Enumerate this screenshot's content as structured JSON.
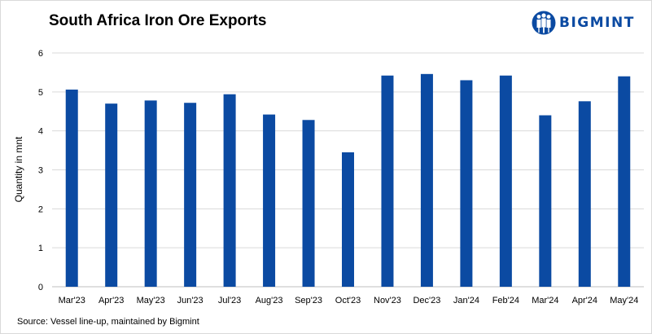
{
  "brand": {
    "logo_icon": "bigmint-people-logo-icon",
    "name": "BIGMINT",
    "color": "#0b4aa2"
  },
  "chart_data": {
    "type": "bar",
    "title": "South Africa Iron Ore Exports",
    "xlabel": "",
    "ylabel": "Quantity in mnt",
    "ylim": [
      0,
      6
    ],
    "yticks": [
      0,
      1,
      2,
      3,
      4,
      5,
      6
    ],
    "grid": true,
    "bar_color": "#0b4aa2",
    "categories": [
      "Mar'23",
      "Apr'23",
      "May'23",
      "Jun'23",
      "Jul'23",
      "Aug'23",
      "Sep'23",
      "Oct'23",
      "Nov'23",
      "Dec'23",
      "Jan'24",
      "Feb'24",
      "Mar'24",
      "Apr'24",
      "May'24"
    ],
    "values": [
      5.06,
      4.7,
      4.78,
      4.72,
      4.94,
      4.42,
      4.28,
      3.45,
      5.42,
      5.46,
      5.3,
      5.42,
      4.4,
      4.76,
      5.4
    ]
  },
  "footer": {
    "source": "Source: Vessel line-up, maintained by Bigmint"
  }
}
